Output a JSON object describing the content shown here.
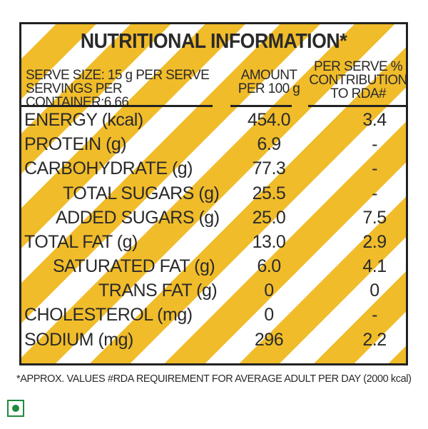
{
  "title": "NUTRITIONAL INFORMATION*",
  "header": {
    "serve_size": "SERVE SIZE: 15 g PER SERVE",
    "servings": "SERVINGS PER CONTAINER:6.66",
    "amount_line1": "AMOUNT",
    "amount_line2": "PER 100 g",
    "rda_line1": "PER SERVE %",
    "rda_line2": "CONTRIBUTION",
    "rda_line3": "TO RDA#"
  },
  "rows": [
    {
      "name": "ENERGY (kcal)",
      "amount": "454.0",
      "rda": "3.4"
    },
    {
      "name": "PROTEIN (g)",
      "amount": "6.9",
      "rda": "-"
    },
    {
      "name": "CARBOHYDRATE (g)",
      "amount": "77.3",
      "rda": "-"
    },
    {
      "name": "TOTAL SUGARS (g)",
      "amount": "25.5",
      "rda": "-"
    },
    {
      "name": "ADDED SUGARS (g)",
      "amount": "25.0",
      "rda": "7.5"
    },
    {
      "name": "TOTAL FAT (g)",
      "amount": "13.0",
      "rda": "2.9"
    },
    {
      "name": "SATURATED FAT (g)",
      "amount": "6.0",
      "rda": "4.1"
    },
    {
      "name": "TRANS FAT (g)",
      "amount": "0",
      "rda": "0"
    },
    {
      "name": "CHOLESTEROL (mg)",
      "amount": "0",
      "rda": "-"
    },
    {
      "name": "SODIUM (mg)",
      "amount": "296",
      "rda": "2.2"
    }
  ],
  "footnote": "*APPROX. VALUES #RDA REQUIREMENT FOR AVERAGE ADULT PER DAY (2000 kcal)",
  "colors": {
    "stripe": "#f1bc2a",
    "border": "#222222",
    "veg_mark": "#1e8a3a"
  },
  "icons": {
    "veg_mark": "veg-symbol-icon"
  }
}
